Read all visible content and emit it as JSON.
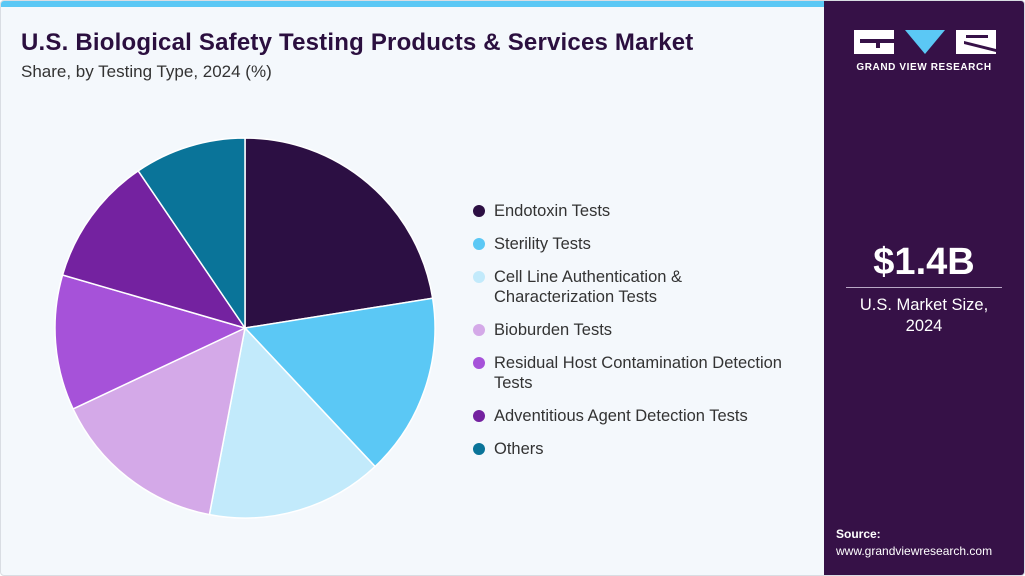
{
  "header": {
    "title": "U.S. Biological Safety Testing Products & Services Market",
    "subtitle": "Share, by Testing Type, 2024 (%)"
  },
  "sidebar": {
    "logo_text": "GRAND VIEW RESEARCH",
    "market_size": "$1.4B",
    "market_size_label": "U.S. Market Size, 2024",
    "source_label": "Source:",
    "source_url": "www.grandviewresearch.com"
  },
  "chart_data": {
    "type": "pie",
    "title": "Share, by Testing Type, 2024 (%)",
    "legend_position": "right",
    "slices": [
      {
        "label": "Endotoxin Tests",
        "value": 22.5,
        "color": "#2c0f43"
      },
      {
        "label": "Sterility Tests",
        "value": 15.5,
        "color": "#5bc8f5"
      },
      {
        "label": "Cell Line Authentication & Characterization Tests",
        "value": 15.0,
        "color": "#c2eafb"
      },
      {
        "label": "Bioburden Tests",
        "value": 15.0,
        "color": "#d4a9e8"
      },
      {
        "label": "Residual Host Contamination Detection Tests",
        "value": 11.5,
        "color": "#a652d9"
      },
      {
        "label": "Adventitious Agent Detection Tests",
        "value": 11.0,
        "color": "#7422a0"
      },
      {
        "label": "Others",
        "value": 9.5,
        "color": "#0a7499"
      }
    ]
  }
}
